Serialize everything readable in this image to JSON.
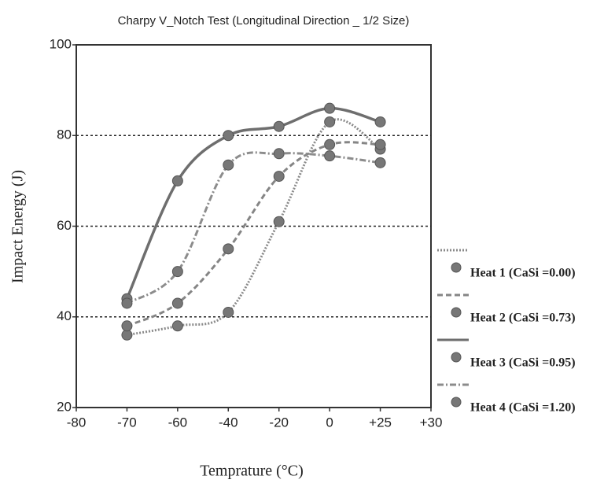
{
  "chart_data": {
    "type": "line",
    "title": "Charpy V_Notch Test (Longitudinal Direction _ 1/2 Size)",
    "x_label": "Temprature (°C)",
    "y_label": "Impact Energy (J)",
    "categories": [
      "-80",
      "-70",
      "-60",
      "-40",
      "-20",
      "0",
      "+25",
      "+30"
    ],
    "ylim": [
      20,
      100
    ],
    "yticks": [
      20,
      40,
      60,
      80,
      100
    ],
    "grid": true,
    "legend": "right",
    "series": [
      {
        "name": "Heat 1 (CaSi =0.00)",
        "color": "#8a8a8a",
        "line_style": "dotted",
        "values": [
          null,
          36,
          38,
          41,
          61,
          83,
          77,
          null
        ]
      },
      {
        "name": "Heat 2 (CaSi =0.73)",
        "color": "#858585",
        "line_style": "dashed",
        "values": [
          null,
          38,
          43,
          55,
          71,
          78,
          78,
          null
        ]
      },
      {
        "name": "Heat 3 (CaSi =0.95)",
        "color": "#6e6e6e",
        "line_style": "solid",
        "values": [
          null,
          44,
          70,
          80,
          82,
          86,
          83,
          null
        ]
      },
      {
        "name": "Heat 4 (CaSi =1.20)",
        "color": "#8c8c8c",
        "line_style": "dashdot",
        "values": [
          null,
          43,
          50,
          73.5,
          76,
          75.5,
          74,
          null
        ]
      }
    ]
  }
}
